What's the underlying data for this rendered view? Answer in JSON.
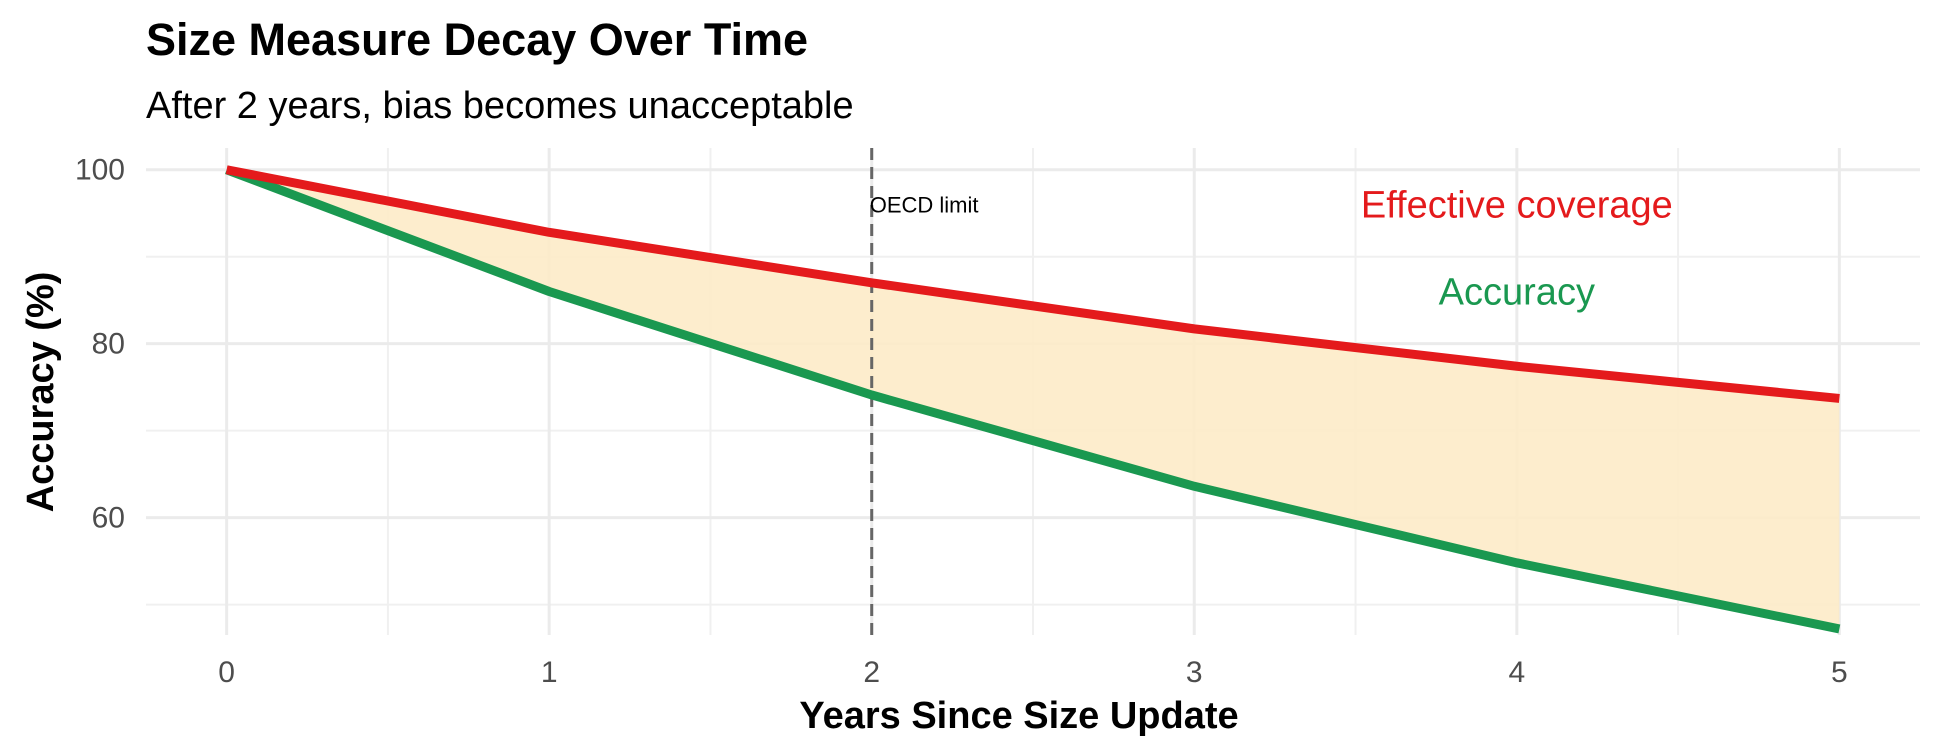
{
  "chart_data": {
    "type": "line",
    "title": "Size Measure Decay Over Time",
    "subtitle": "After 2 years, bias becomes unacceptable",
    "xlabel": "Years Since Size Update",
    "ylabel": "Accuracy (%)",
    "x": [
      0,
      1,
      2,
      3,
      4,
      5
    ],
    "xlim": [
      -0.25,
      5.25
    ],
    "ylim": [
      46.5,
      102.5
    ],
    "x_ticks": [
      "0",
      "1",
      "2",
      "3",
      "4",
      "5"
    ],
    "y_ticks": [
      "60",
      "80",
      "100"
    ],
    "grid": true,
    "series": [
      {
        "name": "Effective coverage",
        "values": [
          100,
          92.8,
          87,
          81.7,
          77.4,
          73.7
        ],
        "color": "#e41a1c"
      },
      {
        "name": "Accuracy",
        "values": [
          100,
          86,
          74.1,
          63.6,
          54.8,
          47.2
        ],
        "color": "#1a9850"
      }
    ],
    "fill_between": {
      "color": "#fdebc8"
    },
    "vline": {
      "x": 2,
      "label": "OECD limit",
      "color": "#666666"
    }
  }
}
